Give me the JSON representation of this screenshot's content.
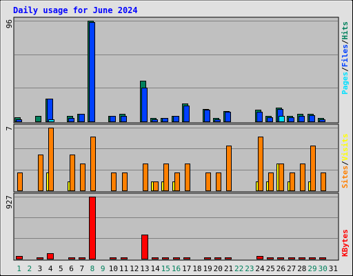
{
  "colors": {
    "background": "#e0e0e0",
    "panel": "#c0c0c0",
    "grid": "#808080",
    "hits": "#00805c",
    "files": "#0040ff",
    "pages": "#00e0ff",
    "visits": "#ffff00",
    "sites": "#ff8000",
    "kbytes": "#ff0000",
    "title": "#0000ff",
    "day_weekday": "#000000",
    "day_weekend": "#00805c"
  },
  "chart_data": {
    "type": "bar",
    "title": "Daily usage for June 2024",
    "categories": [
      "1",
      "2",
      "3",
      "4",
      "5",
      "6",
      "7",
      "8",
      "9",
      "10",
      "11",
      "12",
      "13",
      "14",
      "15",
      "16",
      "17",
      "18",
      "19",
      "20",
      "21",
      "22",
      "23",
      "24",
      "25",
      "26",
      "27",
      "28",
      "29",
      "30",
      "31"
    ],
    "weekend_days": [
      "1",
      "2",
      "8",
      "9",
      "15",
      "16",
      "22",
      "23",
      "29",
      "30"
    ],
    "panels": [
      {
        "name": "top",
        "max_label": "96",
        "ylim": [
          0,
          96
        ],
        "legend": [
          {
            "text": "Pages",
            "color": "#00e0ff"
          },
          {
            "text": "/",
            "color": "#000000"
          },
          {
            "text": "Files",
            "color": "#0040ff"
          },
          {
            "text": "/",
            "color": "#000000"
          },
          {
            "text": "Hits",
            "color": "#00805c"
          }
        ],
        "series": [
          {
            "name": "Hits",
            "color": "#00805c",
            "values": [
              4,
              0,
              5,
              22,
              0,
              5,
              7,
              96,
              0,
              5,
              7,
              0,
              39,
              3,
              3,
              5,
              17,
              0,
              12,
              3,
              10,
              0,
              0,
              11,
              5,
              13,
              5,
              7,
              7,
              3,
              0
            ]
          },
          {
            "name": "Files",
            "color": "#0040ff",
            "values": [
              2,
              0,
              0,
              22,
              0,
              3,
              7,
              95,
              0,
              5,
              5,
              0,
              32,
              2,
              3,
              5,
              15,
              0,
              11,
              2,
              9,
              0,
              0,
              9,
              4,
              12,
              4,
              5,
              6,
              2,
              0
            ]
          },
          {
            "name": "Pages",
            "color": "#00e0ff",
            "values": [
              0,
              0,
              0,
              2,
              0,
              0,
              0,
              0,
              0,
              0,
              0,
              0,
              0,
              0,
              0,
              0,
              0,
              0,
              0,
              0,
              0,
              0,
              0,
              0,
              0,
              5,
              0,
              0,
              0,
              0,
              0
            ]
          }
        ]
      },
      {
        "name": "middle",
        "max_label": "7",
        "ylim": [
          0,
          7
        ],
        "legend": [
          {
            "text": "Sites",
            "color": "#ff8000"
          },
          {
            "text": "/",
            "color": "#000000"
          },
          {
            "text": "Visits",
            "color": "#ffff00"
          }
        ],
        "series": [
          {
            "name": "Visits",
            "color": "#ffff00",
            "values": [
              0,
              0,
              0,
              2,
              0,
              1,
              0,
              0,
              0,
              0,
              0,
              0,
              0,
              1,
              1,
              1,
              0,
              0,
              0,
              0,
              0,
              0,
              0,
              1,
              1,
              3,
              1,
              0,
              1,
              0,
              0
            ]
          },
          {
            "name": "Sites",
            "color": "#ff8000",
            "values": [
              2,
              0,
              4,
              7,
              0,
              4,
              3,
              6,
              0,
              2,
              2,
              0,
              3,
              1,
              3,
              2,
              3,
              0,
              2,
              2,
              5,
              0,
              0,
              6,
              2,
              3,
              2,
              3,
              5,
              2,
              0
            ]
          }
        ]
      },
      {
        "name": "bottom",
        "max_label": "927",
        "ylim": [
          0,
          927
        ],
        "legend": [
          {
            "text": "KBytes",
            "color": "#ff0000"
          }
        ],
        "series": [
          {
            "name": "KBytes",
            "color": "#ff0000",
            "values": [
              40,
              0,
              10,
              80,
              0,
              20,
              8,
              927,
              0,
              8,
              20,
              0,
              358,
              12,
              20,
              16,
              22,
              0,
              22,
              12,
              14,
              0,
              0,
              40,
              20,
              20,
              16,
              16,
              16,
              14,
              0
            ]
          }
        ]
      }
    ]
  }
}
